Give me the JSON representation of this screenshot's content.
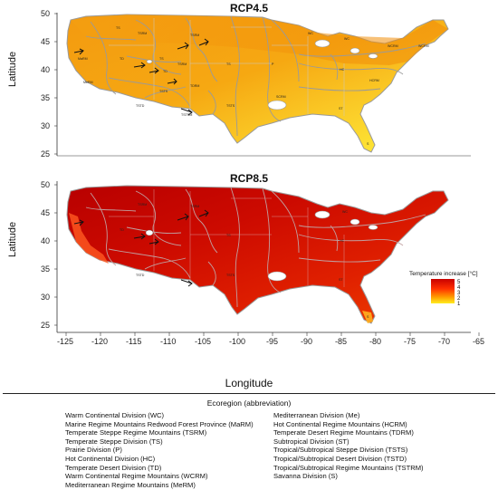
{
  "panels": [
    {
      "title": "RCP4.5",
      "ylabel": "Latitude",
      "yticks": [
        "50",
        "45",
        "40",
        "35",
        "30",
        "25"
      ],
      "labels": [
        "TS",
        "TSRM",
        "TSRM",
        "WC",
        "WC",
        "WCRM",
        "WCRM",
        "MaRM",
        "TD",
        "TS",
        "TSRM",
        "TD",
        "TS",
        "HC",
        "MeRM",
        "P",
        "HCRM",
        "TSTS",
        "TDRM",
        "SCRM",
        "ST",
        "TSTD",
        "TSTS",
        "TSTRM",
        "S"
      ]
    },
    {
      "title": "RCP8.5",
      "ylabel": "Latitude",
      "yticks": [
        "50",
        "45",
        "40",
        "35",
        "30",
        "25"
      ],
      "labels": [
        "TSRM",
        "TSRM",
        "WC",
        "TD",
        "TS",
        "TSTS",
        "TSTD",
        "HC",
        "ST",
        "S"
      ]
    }
  ],
  "xaxis": {
    "label": "Longitude",
    "ticks": [
      "-125",
      "-120",
      "-115",
      "-110",
      "-105",
      "-100",
      "-95",
      "-90",
      "-85",
      "-80",
      "-75",
      "-70",
      "-65"
    ]
  },
  "colorbar": {
    "title": "Temperature increase [°C]",
    "ticks": [
      "5",
      "4",
      "3",
      "2",
      "1"
    ],
    "colors": [
      "#c80000",
      "#e81800",
      "#ff5a00",
      "#ffb000",
      "#ffee20"
    ]
  },
  "legend": {
    "title": "Ecoregion (abbreviation)",
    "left": [
      "Warm Continental Division (WC)",
      "Marine Regime Mountains Redwood Forest Province (MaRM)",
      "Temperate Steppe Regime Mountains (TSRM)",
      "Temperate Steppe Division (TS)",
      "Prairie Division (P)",
      "Hot Continental Division (HC)",
      "Temperate Desert Division (TD)",
      "Warm Continental Regime Mountains (WCRM)",
      "Mediterranean Regime Mountains (MeRM)"
    ],
    "right": [
      "Mediterranean Division (Me)",
      "Hot Continental Regime Mountains (HCRM)",
      "Temperate Desert Regime Mountains (TDRM)",
      "Subtropical Division (ST)",
      "Tropical/Subtropical Steppe Division (TSTS)",
      "Tropical/Subtropical Desert Division (TSTD)",
      "Tropical/Subtropical Regime Mountains (TSTRM)",
      "Savanna Division (S)"
    ]
  }
}
